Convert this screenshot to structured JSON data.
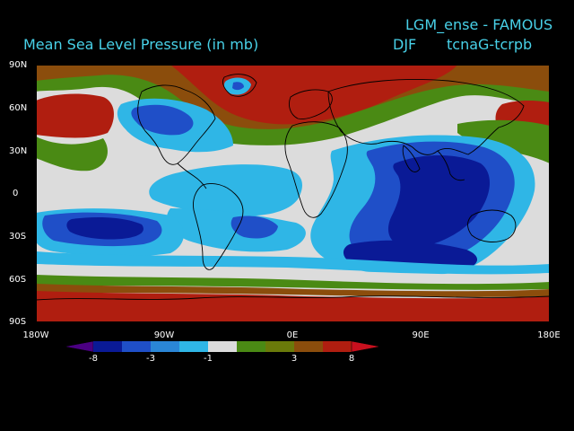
{
  "header": {
    "title": "Mean Sea Level Pressure (in mb)",
    "run": "LGM_ense - FAMOUS",
    "season": "DJF",
    "diff": "tcnaG-tcrpb"
  },
  "axes": {
    "lat_labels": [
      "90N",
      "60N",
      "30N",
      "0",
      "30S",
      "60S",
      "90S"
    ],
    "lon_labels": [
      "180W",
      "90W",
      "0E",
      "90E",
      "180E"
    ]
  },
  "colorbar": {
    "labels": [
      "-8",
      "-3",
      "-1",
      "3",
      "8"
    ],
    "colors": [
      "#4b0082",
      "#0a1a96",
      "#1f4fc8",
      "#2a86d6",
      "#2fb6e6",
      "#dcdcdc",
      "#4a8a14",
      "#6a7a0a",
      "#8b4d0c",
      "#b01e10",
      "#c8101e"
    ]
  },
  "palette": {
    "bg": "#000000",
    "text": "#48d1e8",
    "neg_strong": "#0a1a96",
    "neg_med": "#1f4fc8",
    "neg_light": "#2fb6e6",
    "neutral": "#dcdcdc",
    "pos_light": "#4a8a14",
    "pos_med": "#8b4d0c",
    "pos_strong": "#b01e10"
  }
}
